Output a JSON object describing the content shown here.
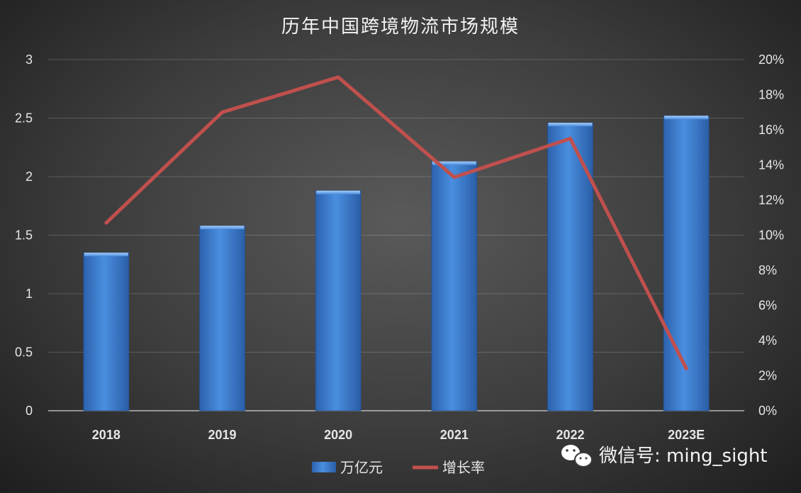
{
  "chart_data": {
    "type": "bar",
    "title": "历年中国跨境物流市场规模",
    "categories": [
      "2018",
      "2019",
      "2020",
      "2021",
      "2022",
      "2023E"
    ],
    "series": [
      {
        "name": "万亿元",
        "type": "bar",
        "axis": "left",
        "color": "#3f7fd0",
        "values": [
          1.35,
          1.58,
          1.88,
          2.13,
          2.46,
          2.52
        ]
      },
      {
        "name": "增长率",
        "type": "line",
        "axis": "right",
        "color": "#c0504d",
        "values": [
          0.107,
          0.17,
          0.19,
          0.133,
          0.155,
          0.024
        ]
      }
    ],
    "ylim": [
      0,
      3
    ],
    "y_ticks": [
      "0",
      "0.5",
      "1",
      "1.5",
      "2",
      "2.5",
      "3"
    ],
    "y2lim": [
      0,
      0.2
    ],
    "y2_ticks": [
      "0%",
      "2%",
      "4%",
      "6%",
      "8%",
      "10%",
      "12%",
      "14%",
      "16%",
      "18%",
      "20%"
    ],
    "grid": true,
    "legend_position": "bottom"
  },
  "watermark": {
    "text": "微信号: ming_sight",
    "icon": "wechat-icon"
  }
}
